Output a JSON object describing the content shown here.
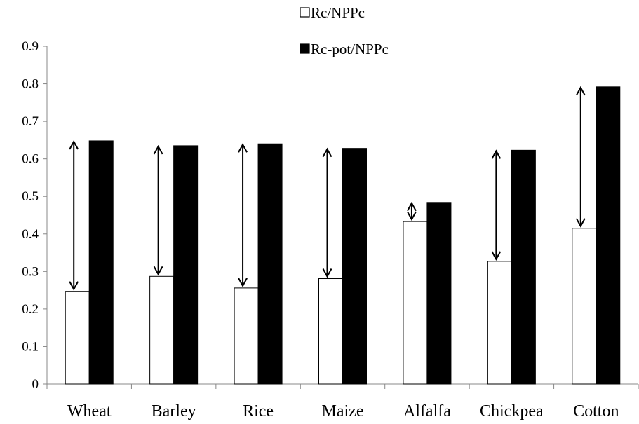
{
  "chart_data": {
    "type": "bar",
    "title": "",
    "xlabel": "",
    "ylabel": "",
    "ylim": [
      0,
      0.9
    ],
    "yticks": [
      "0",
      "0.1",
      "0.2",
      "0.3",
      "0.4",
      "0.5",
      "0.6",
      "0.7",
      "0.8",
      "0.9"
    ],
    "categories": [
      "Wheat",
      "Barley",
      "Rice",
      "Maize",
      "Alfalfa",
      "Chickpea",
      "Cotton"
    ],
    "series": [
      {
        "name": "Rc/NPPc",
        "fill": "#ffffff",
        "values": [
          0.247,
          0.287,
          0.256,
          0.281,
          0.433,
          0.327,
          0.415
        ]
      },
      {
        "name": "Rc-pot/NPPc",
        "fill": "#000000",
        "values": [
          0.648,
          0.635,
          0.64,
          0.628,
          0.484,
          0.623,
          0.792
        ]
      }
    ],
    "legend": "top-center",
    "grid": false,
    "annotations": "double-headed arrows spanning the gap between the two bars in each category"
  }
}
